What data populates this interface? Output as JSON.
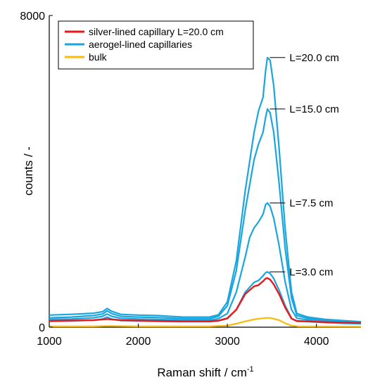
{
  "chart_data": {
    "type": "line",
    "xlabel": "Raman shift / cm",
    "xlabel_sup": "-1",
    "ylabel": "counts / -",
    "xlim": [
      1000,
      4500
    ],
    "ylim": [
      0,
      8000
    ],
    "x_ticks": [
      1000,
      2000,
      3000,
      4000
    ],
    "y_ticks": [
      0,
      8000
    ],
    "grid": false,
    "legend_position": "top-left",
    "legend": [
      {
        "label": "silver-lined capillary L=20.0 cm",
        "color": "#e8191b"
      },
      {
        "label": "aerogel-lined capillaries",
        "color": "#1aa5df"
      },
      {
        "label": "bulk",
        "color": "#f8bb0a"
      }
    ],
    "annotations": [
      {
        "text": "L=20.0 cm",
        "x": 3460,
        "y": 6920
      },
      {
        "text": "L=15.0 cm",
        "x": 3460,
        "y": 5600
      },
      {
        "text": "L=7.5 cm",
        "x": 3460,
        "y": 3190
      },
      {
        "text": "L=3.0 cm",
        "x": 3460,
        "y": 1420
      }
    ],
    "series": [
      {
        "color": "#1aa5df",
        "width": 2.2,
        "points": [
          [
            1000,
            310
          ],
          [
            1250,
            330
          ],
          [
            1500,
            360
          ],
          [
            1600,
            400
          ],
          [
            1650,
            480
          ],
          [
            1700,
            410
          ],
          [
            1800,
            330
          ],
          [
            2000,
            310
          ],
          [
            2200,
            300
          ],
          [
            2500,
            260
          ],
          [
            2800,
            260
          ],
          [
            2900,
            320
          ],
          [
            3000,
            650
          ],
          [
            3100,
            1700
          ],
          [
            3200,
            3500
          ],
          [
            3300,
            5000
          ],
          [
            3350,
            5550
          ],
          [
            3400,
            5900
          ],
          [
            3430,
            6600
          ],
          [
            3450,
            6920
          ],
          [
            3480,
            6850
          ],
          [
            3520,
            6200
          ],
          [
            3580,
            4600
          ],
          [
            3650,
            2500
          ],
          [
            3720,
            900
          ],
          [
            3780,
            350
          ],
          [
            3900,
            260
          ],
          [
            4100,
            200
          ],
          [
            4300,
            170
          ],
          [
            4500,
            140
          ]
        ]
      },
      {
        "color": "#1aa5df",
        "width": 2.2,
        "points": [
          [
            1000,
            240
          ],
          [
            1250,
            260
          ],
          [
            1500,
            300
          ],
          [
            1600,
            340
          ],
          [
            1650,
            420
          ],
          [
            1700,
            350
          ],
          [
            1800,
            280
          ],
          [
            2000,
            260
          ],
          [
            2200,
            250
          ],
          [
            2500,
            220
          ],
          [
            2800,
            220
          ],
          [
            2900,
            280
          ],
          [
            3000,
            550
          ],
          [
            3100,
            1450
          ],
          [
            3200,
            3000
          ],
          [
            3300,
            4300
          ],
          [
            3350,
            4700
          ],
          [
            3400,
            5000
          ],
          [
            3430,
            5400
          ],
          [
            3450,
            5600
          ],
          [
            3480,
            5500
          ],
          [
            3520,
            5000
          ],
          [
            3580,
            3700
          ],
          [
            3650,
            2000
          ],
          [
            3720,
            750
          ],
          [
            3780,
            300
          ],
          [
            3900,
            230
          ],
          [
            4100,
            180
          ],
          [
            4300,
            150
          ],
          [
            4500,
            120
          ]
        ]
      },
      {
        "color": "#1aa5df",
        "width": 2.2,
        "points": [
          [
            1000,
            200
          ],
          [
            1250,
            210
          ],
          [
            1500,
            240
          ],
          [
            1600,
            280
          ],
          [
            1650,
            340
          ],
          [
            1700,
            280
          ],
          [
            1800,
            230
          ],
          [
            2000,
            210
          ],
          [
            2200,
            200
          ],
          [
            2500,
            180
          ],
          [
            2800,
            180
          ],
          [
            2900,
            220
          ],
          [
            3000,
            350
          ],
          [
            3100,
            900
          ],
          [
            3200,
            1800
          ],
          [
            3250,
            2300
          ],
          [
            3300,
            2550
          ],
          [
            3350,
            2700
          ],
          [
            3400,
            2900
          ],
          [
            3430,
            3150
          ],
          [
            3450,
            3190
          ],
          [
            3480,
            3100
          ],
          [
            3520,
            2800
          ],
          [
            3580,
            2100
          ],
          [
            3650,
            1150
          ],
          [
            3720,
            450
          ],
          [
            3780,
            230
          ],
          [
            3900,
            190
          ],
          [
            4100,
            150
          ],
          [
            4300,
            130
          ],
          [
            4500,
            110
          ]
        ]
      },
      {
        "color": "#1aa5df",
        "width": 2.2,
        "points": [
          [
            1000,
            150
          ],
          [
            1250,
            160
          ],
          [
            1500,
            180
          ],
          [
            1600,
            210
          ],
          [
            1650,
            260
          ],
          [
            1700,
            210
          ],
          [
            1800,
            170
          ],
          [
            2000,
            160
          ],
          [
            2200,
            150
          ],
          [
            2500,
            140
          ],
          [
            2800,
            140
          ],
          [
            2900,
            160
          ],
          [
            3000,
            220
          ],
          [
            3100,
            450
          ],
          [
            3200,
            900
          ],
          [
            3300,
            1150
          ],
          [
            3350,
            1200
          ],
          [
            3400,
            1320
          ],
          [
            3430,
            1400
          ],
          [
            3450,
            1420
          ],
          [
            3480,
            1380
          ],
          [
            3520,
            1250
          ],
          [
            3580,
            950
          ],
          [
            3650,
            550
          ],
          [
            3720,
            230
          ],
          [
            3780,
            150
          ],
          [
            3900,
            140
          ],
          [
            4100,
            120
          ],
          [
            4300,
            100
          ],
          [
            4500,
            90
          ]
        ]
      },
      {
        "color": "#e8191b",
        "width": 2.4,
        "points": [
          [
            1000,
            160
          ],
          [
            1250,
            170
          ],
          [
            1500,
            180
          ],
          [
            1600,
            200
          ],
          [
            1650,
            210
          ],
          [
            1700,
            200
          ],
          [
            1800,
            180
          ],
          [
            2000,
            170
          ],
          [
            2200,
            160
          ],
          [
            2500,
            150
          ],
          [
            2800,
            150
          ],
          [
            2900,
            170
          ],
          [
            3000,
            230
          ],
          [
            3100,
            450
          ],
          [
            3200,
            850
          ],
          [
            3300,
            1050
          ],
          [
            3350,
            1080
          ],
          [
            3400,
            1180
          ],
          [
            3430,
            1250
          ],
          [
            3450,
            1260
          ],
          [
            3480,
            1220
          ],
          [
            3520,
            1100
          ],
          [
            3580,
            850
          ],
          [
            3650,
            500
          ],
          [
            3720,
            220
          ],
          [
            3780,
            160
          ],
          [
            3900,
            150
          ],
          [
            4100,
            130
          ],
          [
            4300,
            120
          ],
          [
            4500,
            110
          ]
        ]
      },
      {
        "color": "#f8bb0a",
        "width": 2.2,
        "points": [
          [
            1000,
            20
          ],
          [
            1500,
            20
          ],
          [
            1650,
            30
          ],
          [
            2000,
            20
          ],
          [
            2800,
            20
          ],
          [
            3000,
            40
          ],
          [
            3100,
            90
          ],
          [
            3200,
            150
          ],
          [
            3300,
            200
          ],
          [
            3400,
            230
          ],
          [
            3450,
            240
          ],
          [
            3500,
            230
          ],
          [
            3580,
            180
          ],
          [
            3650,
            100
          ],
          [
            3720,
            40
          ],
          [
            3800,
            20
          ],
          [
            4500,
            15
          ]
        ]
      }
    ]
  }
}
